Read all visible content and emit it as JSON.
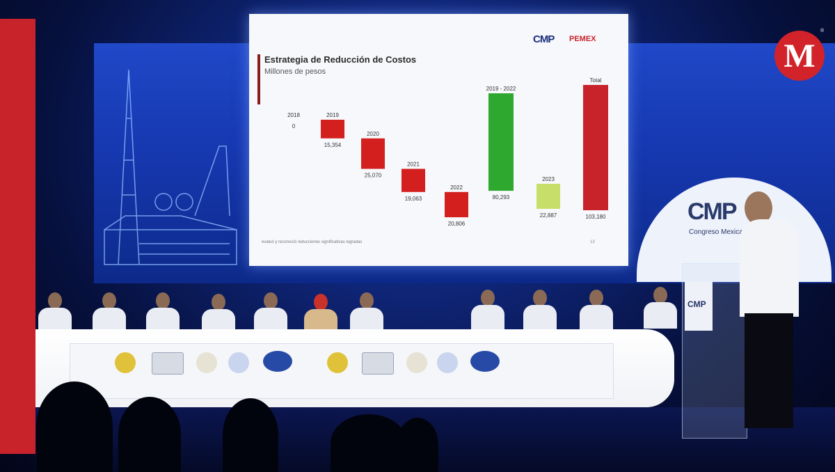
{
  "brand": {
    "logo_letter": "M",
    "registered_mark": "®"
  },
  "slide": {
    "title": "Estrategia de Reducción de Costos",
    "subtitle": "Millones de pesos",
    "logo_cmp": "CMP",
    "logo_pemex": "PEMEX",
    "footnote": "evaluó y reconoció reducciones significativas logradas",
    "page": "13"
  },
  "stage": {
    "emblem_text": "CMP",
    "emblem_sub": "Congreso Mexicano",
    "podium_logo": "CMP"
  },
  "colors": {
    "decrease": "#d41f1f",
    "subtotal": "#2fa82f",
    "year_2023": "#c7de6a",
    "total": "#c8222b",
    "brand_red": "#d2232a"
  },
  "chart_data": {
    "type": "bar",
    "subtype": "waterfall",
    "title": "Estrategia de Reducción de Costos",
    "subtitle": "Millones de pesos",
    "categories": [
      "2018",
      "2019",
      "2020",
      "2021",
      "2022",
      "2019 - 2022",
      "2023",
      "Total"
    ],
    "values": [
      0,
      15354,
      25070,
      19063,
      20806,
      80293,
      22887,
      103180
    ],
    "value_labels": [
      "0",
      "15,354",
      "25,070",
      "19,063",
      "20,806",
      "80,293",
      "22,887",
      "103,180"
    ],
    "bar_kind": [
      "step",
      "step",
      "step",
      "step",
      "step",
      "subtotal",
      "step",
      "total"
    ],
    "bar_colors": [
      "#d41f1f",
      "#d41f1f",
      "#d41f1f",
      "#d41f1f",
      "#d41f1f",
      "#2fa82f",
      "#c7de6a",
      "#c8222b"
    ]
  }
}
